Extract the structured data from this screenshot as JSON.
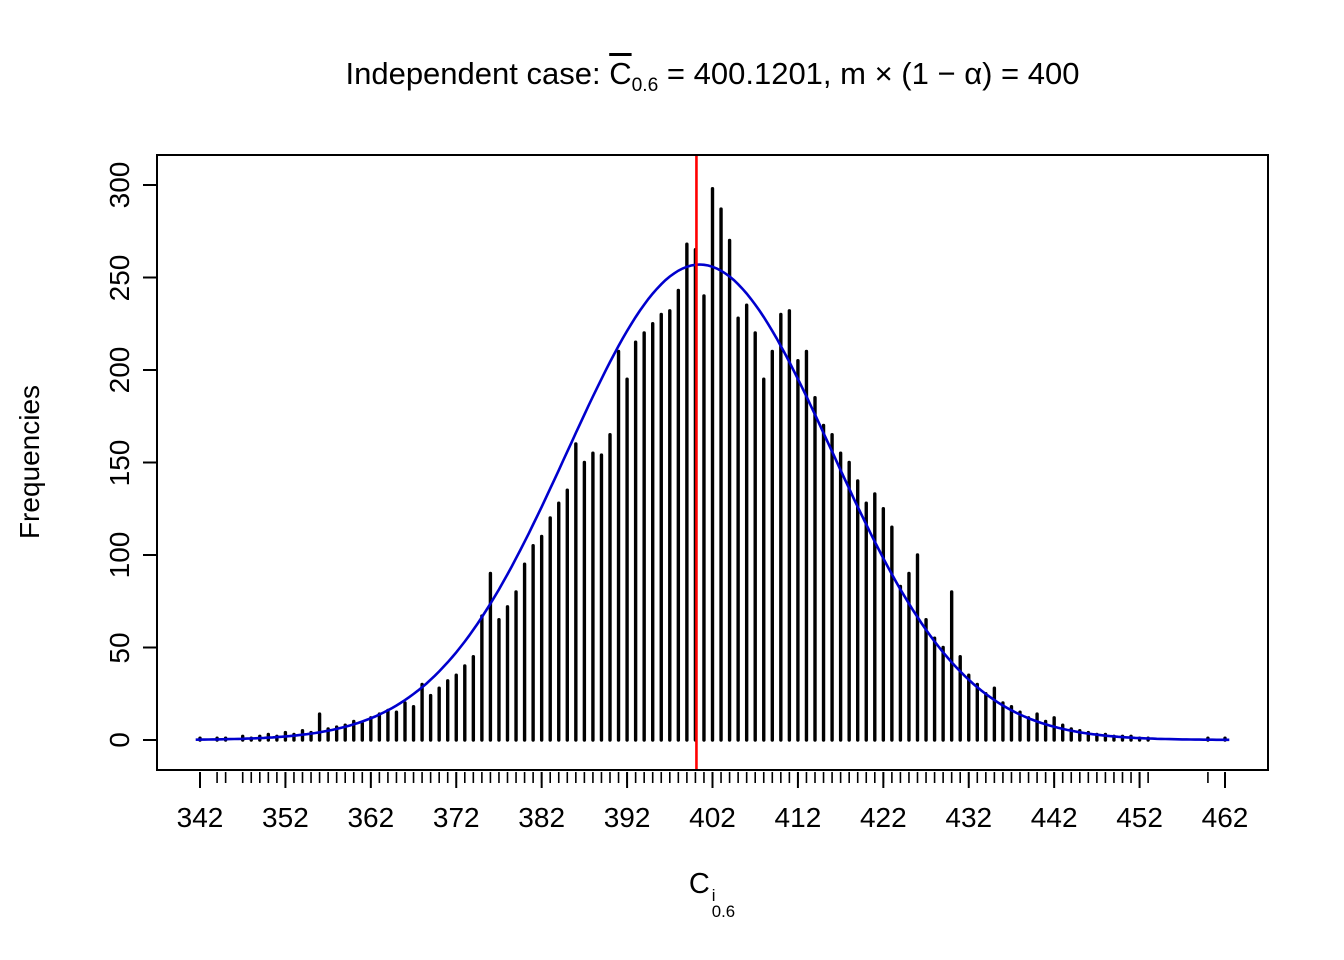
{
  "title": {
    "prefix": "Independent case: ",
    "c_base": "C",
    "c_sub": "0.6",
    "rest": " = 400.1201,  m × (1 − α) = 400"
  },
  "y_axis": {
    "label": "Frequencies",
    "ticks": [
      0,
      50,
      100,
      150,
      200,
      250,
      300
    ]
  },
  "x_axis": {
    "label_base": "C",
    "label_sup": "i",
    "label_sub": "0.6",
    "ticks": [
      342,
      352,
      362,
      372,
      382,
      392,
      402,
      412,
      422,
      432,
      442,
      452,
      462
    ]
  },
  "chart_data": {
    "type": "bar",
    "title": "Independent case: C̄0.6 = 400.1201, m × (1 − α) = 400",
    "xlabel": "C^i_0.6",
    "ylabel": "Frequencies",
    "xlim": [
      342,
      462
    ],
    "ylim": [
      0,
      300
    ],
    "grid": false,
    "bar_style": "spike-histogram",
    "bar_color": "#000000",
    "x": [
      342,
      343,
      344,
      345,
      346,
      347,
      348,
      349,
      350,
      351,
      352,
      353,
      354,
      355,
      356,
      357,
      358,
      359,
      360,
      361,
      362,
      363,
      364,
      365,
      366,
      367,
      368,
      369,
      370,
      371,
      372,
      373,
      374,
      375,
      376,
      377,
      378,
      379,
      380,
      381,
      382,
      383,
      384,
      385,
      386,
      387,
      388,
      389,
      390,
      391,
      392,
      393,
      394,
      395,
      396,
      397,
      398,
      399,
      400,
      401,
      402,
      403,
      404,
      405,
      406,
      407,
      408,
      409,
      410,
      411,
      412,
      413,
      414,
      415,
      416,
      417,
      418,
      419,
      420,
      421,
      422,
      423,
      424,
      425,
      426,
      427,
      428,
      429,
      430,
      431,
      432,
      433,
      434,
      435,
      436,
      437,
      438,
      439,
      440,
      441,
      442,
      443,
      444,
      445,
      446,
      447,
      448,
      449,
      450,
      451,
      452,
      453,
      454,
      455,
      456,
      457,
      458,
      459,
      460,
      461,
      462
    ],
    "frequencies": [
      1,
      0,
      1,
      1,
      0,
      2,
      1,
      2,
      3,
      2,
      4,
      3,
      5,
      4,
      14,
      6,
      7,
      8,
      10,
      9,
      12,
      14,
      16,
      15,
      20,
      18,
      30,
      24,
      28,
      32,
      35,
      40,
      45,
      67,
      90,
      65,
      72,
      80,
      95,
      105,
      110,
      120,
      128,
      135,
      160,
      150,
      155,
      154,
      165,
      210,
      195,
      215,
      220,
      225,
      230,
      232,
      243,
      268,
      265,
      240,
      298,
      287,
      270,
      228,
      235,
      220,
      195,
      210,
      230,
      232,
      205,
      210,
      185,
      170,
      165,
      155,
      150,
      140,
      128,
      133,
      125,
      115,
      83,
      90,
      100,
      65,
      55,
      50,
      80,
      45,
      35,
      30,
      25,
      28,
      20,
      18,
      15,
      12,
      14,
      10,
      12,
      8,
      6,
      5,
      4,
      3,
      3,
      2,
      2,
      2,
      1,
      1,
      0,
      0,
      0,
      0,
      0,
      0,
      1,
      0,
      1
    ],
    "normal_curve": {
      "amplitude": 257,
      "mean": 400.5,
      "sd": 15.5,
      "color": "#0000cd"
    },
    "vline": {
      "x": 400.1201,
      "color": "#ff0000"
    }
  }
}
